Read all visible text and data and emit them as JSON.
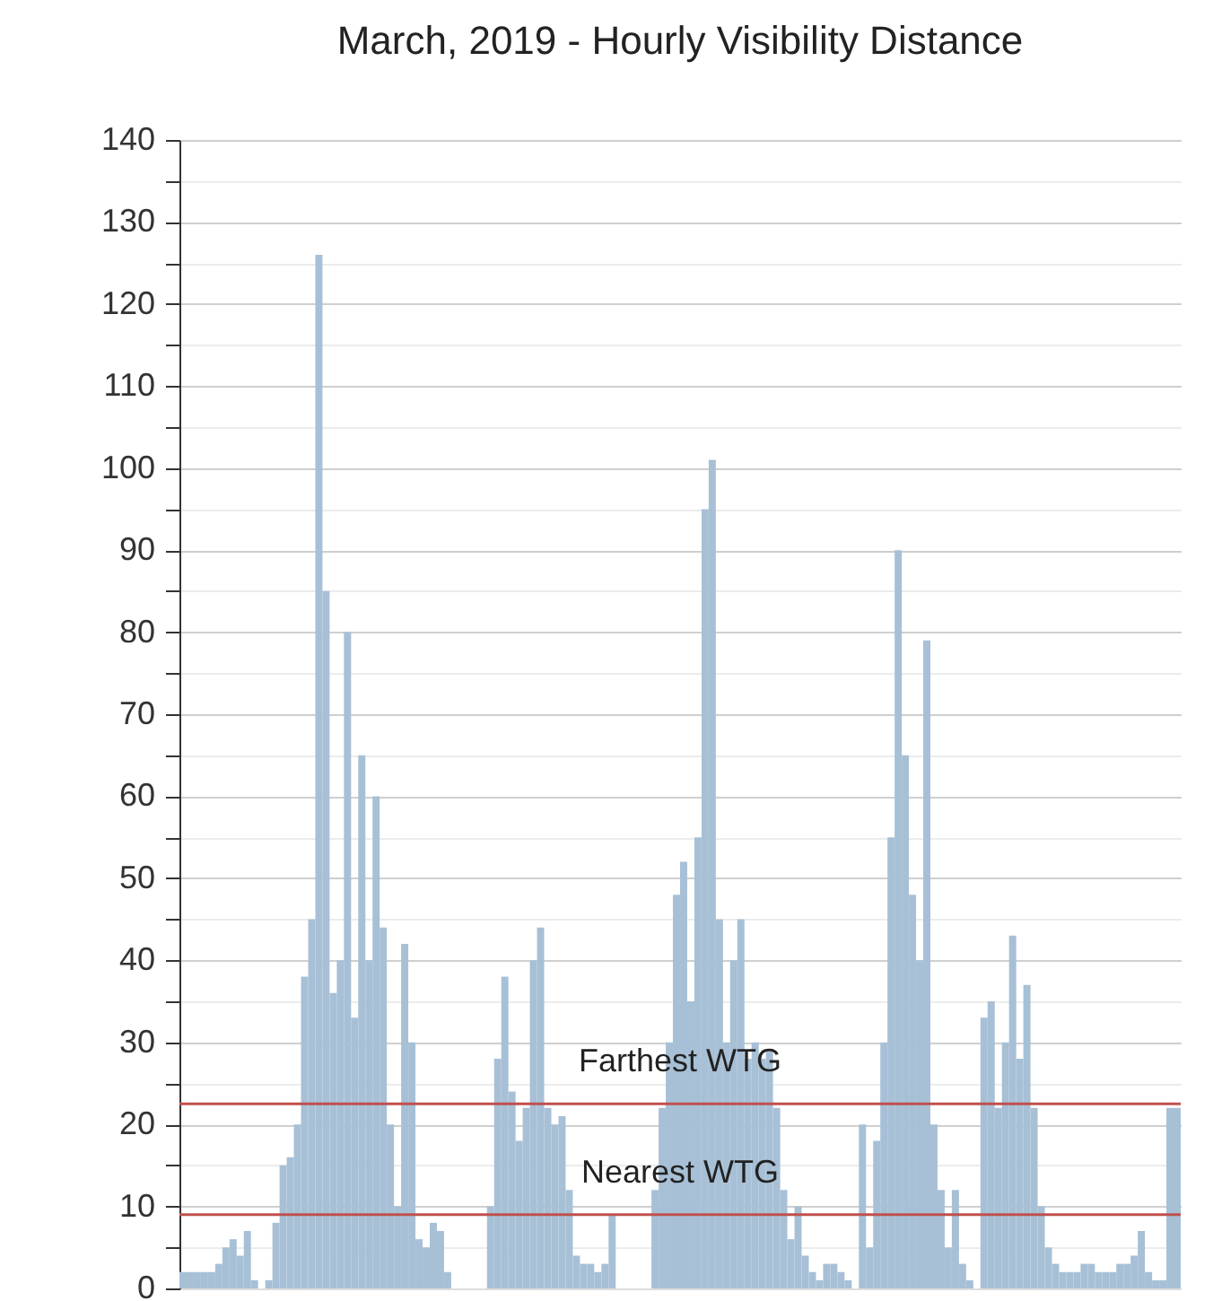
{
  "chart_data": {
    "type": "bar",
    "title": "March, 2019 - Hourly Visibility Distance",
    "categories": [
      null,
      null,
      null,
      null,
      null,
      null,
      null,
      null,
      null,
      null,
      null,
      null,
      null,
      null,
      null,
      null,
      null,
      null,
      null,
      null,
      null,
      null,
      null,
      null,
      null,
      null,
      null,
      null,
      null,
      null,
      null,
      null,
      null,
      null,
      null,
      null,
      null,
      null,
      null,
      null,
      null,
      null,
      null,
      null,
      null,
      null,
      null,
      null,
      null,
      null,
      null,
      null,
      null,
      null,
      null,
      null,
      null,
      null,
      null,
      null,
      null,
      null,
      null,
      null,
      null,
      null,
      null,
      null,
      null,
      null,
      null,
      null,
      null,
      null,
      null,
      null,
      null,
      null,
      null,
      null,
      null,
      null,
      null,
      null,
      null,
      null,
      null,
      null,
      null,
      null,
      null,
      null,
      null,
      null,
      null,
      null,
      null,
      null,
      null,
      null,
      null,
      null,
      null,
      null,
      null,
      null,
      null,
      null,
      null,
      null,
      null,
      null,
      null,
      null,
      null,
      null,
      null,
      null,
      null,
      null,
      null,
      null,
      null,
      null,
      null,
      null,
      null,
      null,
      null,
      null,
      null,
      null,
      null,
      null,
      null,
      null,
      null,
      null,
      null,
      null
    ],
    "values": [
      2,
      2,
      2,
      2,
      2,
      3,
      5,
      6,
      4,
      7,
      1,
      0,
      1,
      8,
      15,
      16,
      20,
      38,
      45,
      126,
      85,
      36,
      40,
      80,
      33,
      65,
      40,
      60,
      44,
      20,
      10,
      42,
      30,
      6,
      5,
      8,
      7,
      2,
      0,
      0,
      0,
      0,
      0,
      10,
      28,
      38,
      24,
      18,
      22,
      40,
      44,
      22,
      20,
      21,
      12,
      4,
      3,
      3,
      2,
      3,
      9,
      0,
      0,
      0,
      0,
      0,
      12,
      22,
      30,
      48,
      52,
      35,
      55,
      95,
      101,
      45,
      30,
      40,
      45,
      28,
      30,
      28,
      29,
      22,
      12,
      6,
      10,
      4,
      2,
      1,
      3,
      3,
      2,
      1,
      0,
      20,
      5,
      18,
      30,
      55,
      90,
      65,
      48,
      40,
      79,
      20,
      12,
      5,
      12,
      3,
      1,
      0,
      33,
      35,
      22,
      30,
      43,
      28,
      37,
      22,
      10,
      5,
      3,
      2,
      2,
      2,
      3,
      3,
      2,
      2,
      2,
      3,
      3,
      4,
      7,
      2,
      1,
      1,
      22,
      22
    ],
    "color": "#a7c0d6",
    "ylim": [
      0,
      140
    ],
    "yticks": [
      0,
      {
        "value": 5,
        "label": null
      },
      10,
      {
        "value": 15,
        "label": null
      },
      20,
      {
        "value": 25,
        "label": null
      },
      30,
      {
        "value": 35,
        "label": null
      },
      40,
      {
        "value": 45,
        "label": null
      },
      50,
      {
        "value": 55,
        "label": null
      },
      60,
      {
        "value": 65,
        "label": null
      },
      70,
      {
        "value": 75,
        "label": null
      },
      80,
      {
        "value": 85,
        "label": null
      },
      90,
      {
        "value": 95,
        "label": null
      },
      100,
      {
        "value": 105,
        "label": null
      },
      110,
      {
        "value": 115,
        "label": null
      },
      120,
      {
        "value": 125,
        "label": null
      },
      130,
      {
        "value": 135,
        "label": null
      },
      140
    ],
    "grid": true,
    "ref_lines": [
      {
        "axis": "y",
        "value": 22.5,
        "label": "Farthest WTG",
        "color": "#c0504d"
      },
      {
        "axis": "y",
        "value": 9,
        "label": "Nearest WTG",
        "color": "#c0504d"
      }
    ]
  }
}
